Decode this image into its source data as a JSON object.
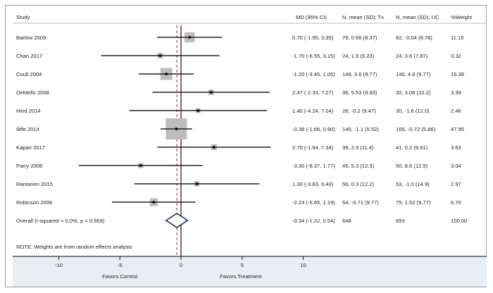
{
  "chart_data": {
    "type": "forest",
    "title": "",
    "xlabel_left": "Favors Control",
    "xlabel_right": "Favors Treatment",
    "xlim": [
      -12.5,
      12
    ],
    "xticks": [
      -10,
      -5,
      0,
      5,
      10
    ],
    "xtick_labels": [
      "-10",
      "-5",
      "0",
      "5",
      "10"
    ],
    "null_line": 0,
    "overall_line": -0.34,
    "columns": {
      "study": "Study",
      "md": "MD (95% CI)",
      "tx": "N, mean (SD); Tx",
      "uc": "N, mean (SD); UC",
      "weight": "%Weight"
    },
    "studies": [
      {
        "name": "Barlow 2009",
        "md": 0.7,
        "lo": -1.95,
        "hi": 3.35,
        "md_text": "0.70 (-1.95, 3.35)",
        "tx": "79, 0.66 (8.37)",
        "uc": "82, -0.04 (8.78)",
        "weight": 11.15,
        "weight_text": "11.15"
      },
      {
        "name": "Chan 2017",
        "md": -1.7,
        "lo": -6.55,
        "hi": 3.15,
        "md_text": "-1.70 (-6.55, 3.15)",
        "tx": "24, 1.9 (9.23)",
        "uc": "24, 3.6 (7.87)",
        "weight": 3.32,
        "weight_text": "3.32"
      },
      {
        "name": "Coull 2004",
        "md": -1.2,
        "lo": -3.45,
        "hi": 1.05,
        "md_text": "-1.20 (-3.45, 1.05)",
        "tx": "149, 3.6 (9.77)",
        "uc": "140, 4.8 (9.77)",
        "weight": 15.39,
        "weight_text": "15.39"
      },
      {
        "name": "DeMello 2008",
        "md": 2.47,
        "lo": -2.33,
        "hi": 7.27,
        "md_text": "2.47 (-2.33, 7.27)",
        "tx": "36, 5.53 (9.93)",
        "uc": "32, 3.06 (10.2)",
        "weight": 3.39,
        "weight_text": "3.39"
      },
      {
        "name": "Hind 2014",
        "md": 1.4,
        "lo": -4.24,
        "hi": 7.04,
        "md_text": "1.40 (-4.24, 7.04)",
        "tx": "26, -0.2 (9.47)",
        "uc": "30, -1.6 (12.0)",
        "weight": 2.46,
        "weight_text": "2.46"
      },
      {
        "name": "Iliffe 2014",
        "md": -0.38,
        "lo": -1.66,
        "hi": 0.9,
        "md_text": "-0.38 (-1.66, 0.90)",
        "tx": "140, -1.1 (5.52)",
        "uc": "166, -0.72 (5.86)",
        "weight": 47.95,
        "weight_text": "47.95"
      },
      {
        "name": "Kapan 2017",
        "md": 2.7,
        "lo": -1.94,
        "hi": 7.34,
        "md_text": "2.70 (-1.94, 7.34)",
        "tx": "39, 2.9 (11.4)",
        "uc": "41, 0.2 (9.61)",
        "weight": 3.63,
        "weight_text": "3.63"
      },
      {
        "name": "Parry 2009",
        "md": -3.3,
        "lo": -8.37,
        "hi": 1.77,
        "md_text": "-3.30 (-8.37, 1.77)",
        "tx": "45, 5.3 (12.3)",
        "uc": "50, 8.6 (12.9)",
        "weight": 3.04,
        "weight_text": "3.04"
      },
      {
        "name": "Rantanen 2015",
        "md": 1.3,
        "lo": -3.83,
        "hi": 6.43,
        "md_text": "1.30 (-3.83, 6.43)",
        "tx": "56, 0.3 (12.2)",
        "uc": "53, -1.0 (14.9)",
        "weight": 2.97,
        "weight_text": "2.97"
      },
      {
        "name": "Robinson 2006",
        "md": -2.23,
        "lo": -5.65,
        "hi": 1.19,
        "md_text": "-2.23 (-5.65, 1.19)",
        "tx": "54, -0.71 (9.77)",
        "uc": "75, 1.52 (9.77)",
        "weight": 6.7,
        "weight_text": "6.70"
      }
    ],
    "overall": {
      "name": "Overall  (I-squared = 0.0%, p = 0.569)",
      "md": -0.34,
      "lo": -1.22,
      "hi": 0.54,
      "md_text": "-0.34 (-1.22, 0.54)",
      "tx": "648",
      "uc": "693",
      "weight": 100.0,
      "weight_text": "100.00"
    },
    "note": "NOTE: Weights are from random effects analysis",
    "colors": {
      "box": "#bdbdbd",
      "ci": "#222222",
      "diamond": "#1f2a6b",
      "overall_line": "#b0334a",
      "axis_band": "#e8eef2"
    }
  }
}
